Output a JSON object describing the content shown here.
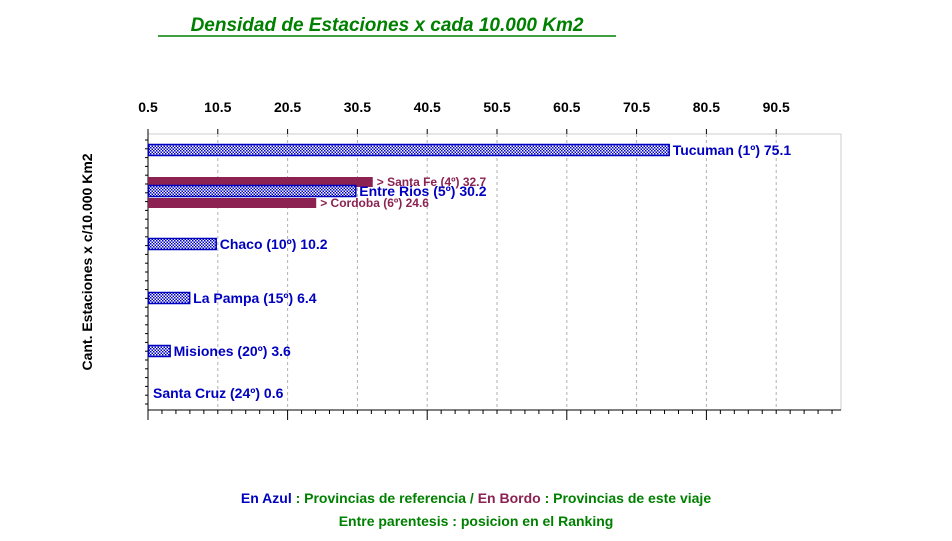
{
  "chart_data": {
    "type": "bar",
    "orientation": "horizontal",
    "title": "Densidad de Estaciones x cada 10.000 Km2",
    "ylabel": "Cant. Estaciones x c/10.000 Km2",
    "xlim": [
      0.5,
      100
    ],
    "x_ticks": [
      "0.5",
      "10.5",
      "20.5",
      "30.5",
      "40.5",
      "50.5",
      "60.5",
      "70.5",
      "80.5",
      "90.5"
    ],
    "x_tick_values": [
      0.5,
      10.5,
      20.5,
      30.5,
      40.5,
      50.5,
      60.5,
      70.5,
      80.5,
      90.5
    ],
    "grid": true,
    "bars": [
      {
        "label": "Tucuman (1º) 75.1",
        "value": 75.1,
        "group": "referencia",
        "slot": 0
      },
      {
        "label": "> Santa Fe (4º) 32.7",
        "value": 32.7,
        "group": "viaje",
        "slot": 1
      },
      {
        "label": "Entre Rios (5º) 30.2",
        "value": 30.2,
        "group": "referencia",
        "slot": 1
      },
      {
        "label": "> Cordoba (6º) 24.6",
        "value": 24.6,
        "group": "viaje",
        "slot": 1
      },
      {
        "label": "Chaco (10º) 10.2",
        "value": 10.2,
        "group": "referencia",
        "slot": 2
      },
      {
        "label": "La Pampa (15º) 6.4",
        "value": 6.4,
        "group": "referencia",
        "slot": 3
      },
      {
        "label": "Misiones (20º) 3.6",
        "value": 3.6,
        "group": "referencia",
        "slot": 4
      },
      {
        "label": "Santa Cruz (24º) 0.6",
        "value": 0.6,
        "group": "referencia",
        "slot": 5
      }
    ],
    "colors": {
      "referencia": "#0000c0",
      "viaje": "#8b2252",
      "legend_text": "#008000"
    }
  },
  "legend": {
    "line1_blue": "En Azul",
    "line1_green_a": " : Provincias de referencia / ",
    "line1_bordo": "En Bordo",
    "line1_green_b": " : Provincias de este viaje",
    "line2": "Entre parentesis : posicion en el Ranking"
  }
}
